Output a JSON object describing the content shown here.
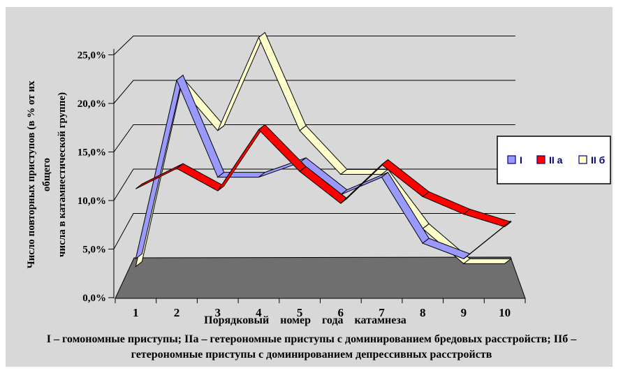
{
  "figure": {
    "background": "#d8d8d8",
    "page_background": "#ffffff"
  },
  "chart_data": {
    "type": "line",
    "style": "3d-ribbon",
    "title": "",
    "categories": [
      "1",
      "2",
      "3",
      "4",
      "5",
      "6",
      "7",
      "8",
      "9",
      "10"
    ],
    "xlabel": "Порядковый номер года катамнеза",
    "ylabel": "Число повторных приступов (в % от их\nобщего\nчисла в катамнестической группе)",
    "y_ticks": [
      "0,0%",
      "5,0%",
      "10,0%",
      "15,0%",
      "20,0%",
      "25,0%"
    ],
    "ylim": [
      0,
      25
    ],
    "grid": true,
    "legend_position": "right",
    "floor_color": "#6f6f6f",
    "legend_text_color": "#000080",
    "series": [
      {
        "id": "series-i",
        "name": "I",
        "color": "#9999ff",
        "values": [
          4.0,
          22.4,
          12.4,
          12.4,
          13.9,
          10.6,
          12.4,
          5.6,
          4.0,
          7.4
        ]
      },
      {
        "id": "series-iia",
        "name": "II а",
        "color": "#ff0000",
        "values": [
          11.2,
          13.3,
          11.0,
          17.3,
          13.0,
          9.7,
          13.7,
          10.4,
          8.6,
          7.3
        ]
      },
      {
        "id": "series-iib",
        "name": "II б",
        "color": "#ffffcc",
        "values": [
          3.2,
          22.1,
          17.2,
          26.8,
          17.2,
          12.7,
          12.7,
          7.1,
          3.5,
          3.5
        ]
      }
    ]
  },
  "caption": {
    "text": "I – гомономные приступы; IIа – гетерономные приступы с доминированием бредовых расстройств; IIб –\nгетерономные приступы с доминированием депрессивных расстройств"
  }
}
